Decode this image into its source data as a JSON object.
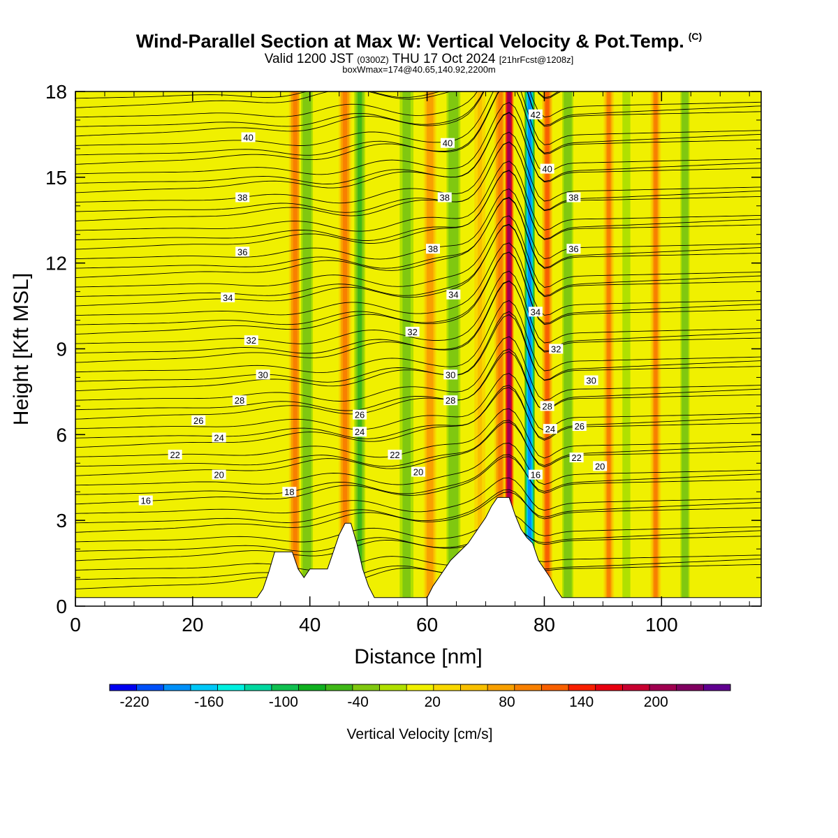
{
  "title": {
    "main": "Wind-Parallel Section at Max W: Vertical Velocity & Pot.Temp.",
    "copyright": "(C)",
    "valid_prefix": "Valid 1200 JST",
    "valid_utc": "(0300Z)",
    "valid_date": "THU 17 Oct 2024",
    "forecast": "[21hrFcst@1208z]",
    "box": "boxWmax=174@40.65,140.92,2200m"
  },
  "chart_data": {
    "type": "heatmap",
    "xlabel": "Distance [nm]",
    "ylabel": "Height [Kft MSL]",
    "xlim": [
      0,
      117
    ],
    "ylim": [
      0,
      18
    ],
    "x_ticks": [
      0,
      20,
      40,
      60,
      80,
      100
    ],
    "y_ticks": [
      0,
      3,
      6,
      9,
      12,
      15,
      18
    ],
    "colorbar": {
      "label": "Vertical Velocity [cm/s]",
      "min": -240,
      "max": 260,
      "step": 20,
      "tick_labels": [
        "-220",
        "-160",
        "-100",
        "-40",
        "20",
        "80",
        "140",
        "200"
      ],
      "colors": [
        "#0000f0",
        "#0050f8",
        "#0090f8",
        "#00c8f8",
        "#00f0e0",
        "#00d8a0",
        "#10c050",
        "#10b020",
        "#40b818",
        "#80c810",
        "#b0e000",
        "#f0f000",
        "#f8d800",
        "#f8c000",
        "#f8a000",
        "#f88000",
        "#f86000",
        "#f82000",
        "#e80010",
        "#c80030",
        "#a00050",
        "#800060",
        "#600090"
      ]
    },
    "vertical_velocity_bands": [
      {
        "x": 35.5,
        "w": -20,
        "half_width": 1.2
      },
      {
        "x": 37.5,
        "w": 70,
        "half_width": 1.2
      },
      {
        "x": 39.5,
        "w": -60,
        "half_width": 1.3
      },
      {
        "x": 46.0,
        "w": 70,
        "half_width": 1.2
      },
      {
        "x": 48.5,
        "w": -70,
        "half_width": 1.2
      },
      {
        "x": 56.5,
        "w": -50,
        "half_width": 1.5
      },
      {
        "x": 60.5,
        "w": 50,
        "half_width": 1.2
      },
      {
        "x": 64.5,
        "w": -60,
        "half_width": 1.5
      },
      {
        "x": 69.0,
        "w": 20,
        "half_width": 1.2
      },
      {
        "x": 72.5,
        "w": 70,
        "half_width": 1.2
      },
      {
        "x": 74.0,
        "w": 170,
        "half_width": 0.9
      },
      {
        "x": 77.5,
        "w": -200,
        "half_width": 1.0
      },
      {
        "x": 80.5,
        "w": 80,
        "half_width": 1.0
      },
      {
        "x": 84.0,
        "w": -60,
        "half_width": 1.2
      },
      {
        "x": 91.0,
        "w": 60,
        "half_width": 1.0
      },
      {
        "x": 94.0,
        "w": -40,
        "half_width": 1.0
      },
      {
        "x": 99.0,
        "w": 60,
        "half_width": 1.0
      },
      {
        "x": 104.0,
        "w": -60,
        "half_width": 1.0
      }
    ],
    "theta_labels": [
      {
        "x": 29.5,
        "y": 16.4,
        "text": "40"
      },
      {
        "x": 28.5,
        "y": 14.3,
        "text": "38"
      },
      {
        "x": 28.5,
        "y": 12.4,
        "text": "36"
      },
      {
        "x": 26.0,
        "y": 10.8,
        "text": "34"
      },
      {
        "x": 30.0,
        "y": 9.3,
        "text": "32"
      },
      {
        "x": 32.0,
        "y": 8.1,
        "text": "30"
      },
      {
        "x": 28.0,
        "y": 7.2,
        "text": "28"
      },
      {
        "x": 21.0,
        "y": 6.5,
        "text": "26"
      },
      {
        "x": 24.5,
        "y": 5.9,
        "text": "24"
      },
      {
        "x": 17.0,
        "y": 5.3,
        "text": "22"
      },
      {
        "x": 24.5,
        "y": 4.6,
        "text": "20"
      },
      {
        "x": 12.0,
        "y": 3.7,
        "text": "16"
      },
      {
        "x": 36.5,
        "y": 4.0,
        "text": "18"
      },
      {
        "x": 48.5,
        "y": 6.7,
        "text": "26"
      },
      {
        "x": 48.5,
        "y": 6.1,
        "text": "24"
      },
      {
        "x": 54.5,
        "y": 5.3,
        "text": "22"
      },
      {
        "x": 58.5,
        "y": 4.7,
        "text": "20"
      },
      {
        "x": 63.5,
        "y": 16.2,
        "text": "40"
      },
      {
        "x": 63.0,
        "y": 14.3,
        "text": "38"
      },
      {
        "x": 61.0,
        "y": 12.5,
        "text": "38"
      },
      {
        "x": 64.5,
        "y": 10.9,
        "text": "34"
      },
      {
        "x": 57.5,
        "y": 9.6,
        "text": "32"
      },
      {
        "x": 64.0,
        "y": 8.1,
        "text": "30"
      },
      {
        "x": 64.0,
        "y": 7.2,
        "text": "28"
      },
      {
        "x": 78.5,
        "y": 17.2,
        "text": "42"
      },
      {
        "x": 80.5,
        "y": 15.3,
        "text": "40"
      },
      {
        "x": 85.0,
        "y": 14.3,
        "text": "38"
      },
      {
        "x": 85.0,
        "y": 12.5,
        "text": "36"
      },
      {
        "x": 78.5,
        "y": 10.3,
        "text": "34"
      },
      {
        "x": 82.0,
        "y": 9.0,
        "text": "32"
      },
      {
        "x": 88.0,
        "y": 7.9,
        "text": "30"
      },
      {
        "x": 80.5,
        "y": 7.0,
        "text": "28"
      },
      {
        "x": 81.0,
        "y": 6.2,
        "text": "24"
      },
      {
        "x": 86.0,
        "y": 6.3,
        "text": "26"
      },
      {
        "x": 85.5,
        "y": 5.2,
        "text": "22"
      },
      {
        "x": 89.5,
        "y": 4.9,
        "text": "20"
      },
      {
        "x": 78.5,
        "y": 4.6,
        "text": "16"
      }
    ],
    "terrain": [
      [
        0,
        0.3
      ],
      [
        31,
        0.3
      ],
      [
        32,
        0.6
      ],
      [
        33,
        1.2
      ],
      [
        34,
        1.9
      ],
      [
        37,
        1.9
      ],
      [
        38,
        1.3
      ],
      [
        39,
        1.0
      ],
      [
        40,
        1.3
      ],
      [
        43,
        1.3
      ],
      [
        44,
        1.9
      ],
      [
        45,
        2.5
      ],
      [
        46,
        2.9
      ],
      [
        47,
        2.9
      ],
      [
        48,
        2.2
      ],
      [
        49,
        1.3
      ],
      [
        50,
        0.7
      ],
      [
        51,
        0.3
      ],
      [
        60,
        0.3
      ],
      [
        61,
        0.7
      ],
      [
        62,
        1.0
      ],
      [
        64,
        1.6
      ],
      [
        66,
        2.0
      ],
      [
        67,
        2.2
      ],
      [
        68,
        2.5
      ],
      [
        69,
        2.8
      ],
      [
        70,
        3.1
      ],
      [
        71,
        3.5
      ],
      [
        72,
        3.8
      ],
      [
        74,
        3.8
      ],
      [
        75,
        3.2
      ],
      [
        76,
        2.7
      ],
      [
        77,
        2.4
      ],
      [
        78,
        2.2
      ],
      [
        79,
        1.6
      ],
      [
        80,
        1.3
      ],
      [
        81,
        1.0
      ],
      [
        82,
        0.6
      ],
      [
        83,
        0.3
      ],
      [
        117,
        0.3
      ]
    ]
  }
}
